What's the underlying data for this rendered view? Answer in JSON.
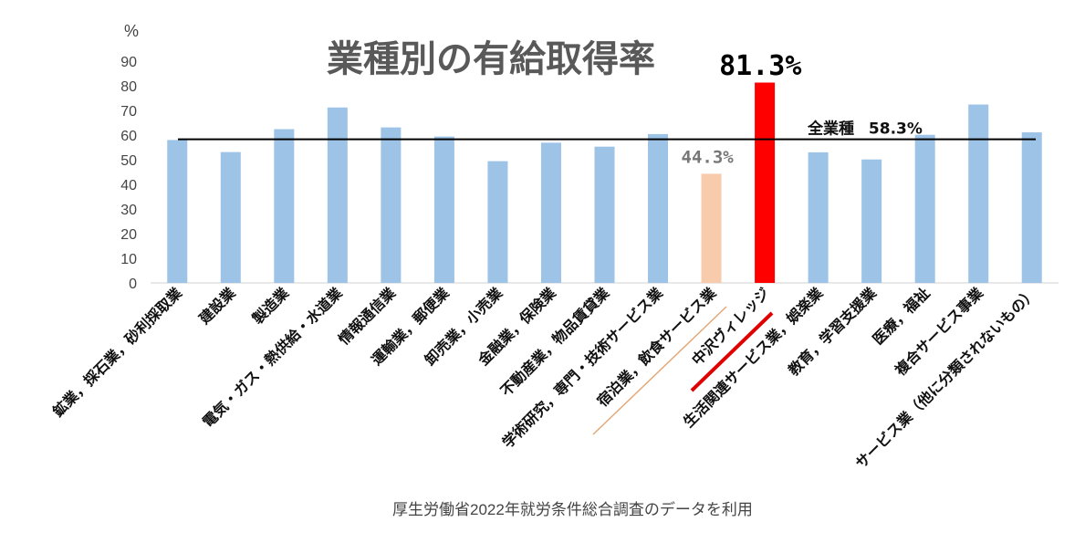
{
  "chart_data": {
    "type": "bar",
    "title": "業種別の有給取得率",
    "ylabel": "%",
    "ylim": [
      0,
      90
    ],
    "yticks": [
      0,
      10,
      20,
      30,
      40,
      50,
      60,
      70,
      80,
      90
    ],
    "grid": false,
    "categories": [
      "鉱業，採石業，砂利採取業",
      "建設業",
      "製造業",
      "電気・ガス・熱供給・水道業",
      "情報通信業",
      "運輸業，郵便業",
      "卸売業，小売業",
      "金融業，保険業",
      "不動産業，物品賃貸業",
      "学術研究，専門・技術サービス業",
      "宿泊業，飲食サービス業",
      "中沢ヴィレッジ",
      "生活関連サービス業，娯楽業",
      "教育，学習支援業",
      "医療，福祉",
      "複合サービス事業",
      "サービス業（他に分類されないもの）"
    ],
    "values": [
      58.0,
      53.1,
      62.4,
      71.2,
      63.1,
      59.4,
      49.4,
      56.9,
      55.3,
      60.4,
      44.3,
      81.3,
      53.0,
      50.1,
      60.1,
      72.4,
      61.1
    ],
    "colors": {
      "default": "#9DC3E6",
      "highlight_low": "#F8CBAD",
      "highlight_top": "#FF0000",
      "average_line": "#000000",
      "underline_red": "#E00000",
      "underline_orange": "#E2A878"
    },
    "highlight_low_index": 10,
    "highlight_top_index": 11,
    "average": {
      "value": 58.3,
      "label": "全業種",
      "value_label": "58.3%"
    },
    "annotations": {
      "low_label": "44.3%",
      "top_label": "81.3%"
    },
    "source": "厚生労働省2022年就労条件総合調査のデータを利用"
  }
}
